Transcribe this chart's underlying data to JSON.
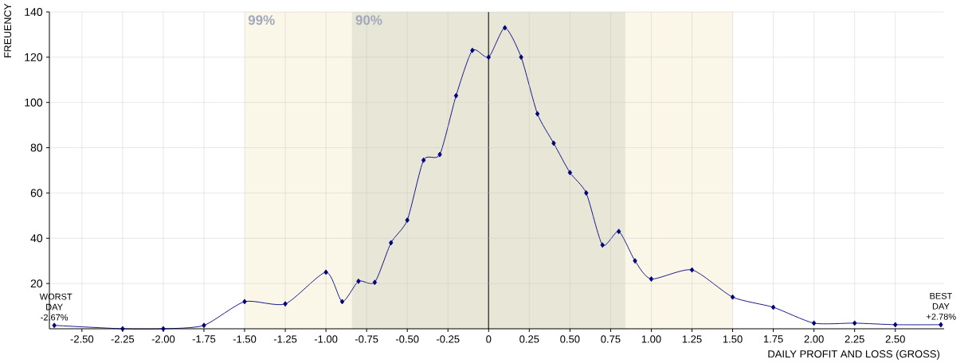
{
  "chart_data": {
    "type": "line",
    "xlabel": "DAILY PROFIT AND LOSS (GROSS)",
    "ylabel": "FREUENCY",
    "x": [
      -2.67,
      -2.25,
      -2.0,
      -1.75,
      -1.5,
      -1.25,
      -1.0,
      -0.9,
      -0.8,
      -0.7,
      -0.6,
      -0.5,
      -0.4,
      -0.3,
      -0.2,
      -0.1,
      0,
      0.1,
      0.2,
      0.3,
      0.4,
      0.5,
      0.6,
      0.7,
      0.8,
      0.9,
      1.0,
      1.25,
      1.5,
      1.75,
      2.0,
      2.25,
      2.5,
      2.78
    ],
    "values": [
      1.5,
      0,
      0,
      1.5,
      12,
      11,
      25,
      12,
      21,
      20.5,
      38,
      48,
      74.5,
      77,
      103,
      123,
      120,
      133,
      120,
      95,
      82,
      69,
      60,
      37,
      43,
      30,
      22,
      26,
      14,
      9.5,
      2.5,
      2.5,
      1.8,
      1.8
    ],
    "color": "#000080",
    "marker": "diamond",
    "grid": true,
    "xlim": [
      -2.7,
      2.8
    ],
    "ylim": [
      0,
      140
    ],
    "xticks": [
      {
        "value": -2.5,
        "label": "-2.50"
      },
      {
        "value": -2.25,
        "label": "-2.25"
      },
      {
        "value": -2.0,
        "label": "-2.00"
      },
      {
        "value": -1.75,
        "label": "-1.75"
      },
      {
        "value": -1.5,
        "label": "-1.50"
      },
      {
        "value": -1.25,
        "label": "-1.25"
      },
      {
        "value": -1.0,
        "label": "-1.00"
      },
      {
        "value": -0.75,
        "label": "-0.75"
      },
      {
        "value": -0.5,
        "label": "-0.50"
      },
      {
        "value": -0.25,
        "label": "-0.25"
      },
      0,
      {
        "value": 0.25,
        "label": "0.25"
      },
      {
        "value": 0.5,
        "label": "0.50"
      },
      {
        "value": 0.75,
        "label": "0.75"
      },
      {
        "value": 1.0,
        "label": "1.00"
      },
      {
        "value": 1.25,
        "label": "1.25"
      },
      {
        "value": 1.5,
        "label": "1.50"
      },
      {
        "value": 1.75,
        "label": "1.75"
      },
      {
        "value": 2.0,
        "label": "2.00"
      },
      {
        "value": 2.25,
        "label": "2.25"
      },
      {
        "value": 2.5,
        "label": "2.50"
      }
    ],
    "yticks": [
      20,
      40,
      60,
      80,
      100,
      120,
      140
    ],
    "bands": [
      {
        "axis": "x",
        "from": -1.5,
        "to": 1.5,
        "label": "99%",
        "color": "#faf6e8"
      },
      {
        "axis": "x",
        "from": -0.84,
        "to": 0.84,
        "label": "90%",
        "color": "#e8e6d6"
      }
    ],
    "ref_lines": [
      {
        "axis": "x",
        "value": 0,
        "color": "#000000"
      }
    ],
    "annotations": [
      {
        "text": "WORST DAY -2.67%",
        "x": -2.67,
        "y": 1.5
      },
      {
        "text": "BEST DAY +2.78%",
        "x": 2.78,
        "y": 1.8
      }
    ]
  }
}
